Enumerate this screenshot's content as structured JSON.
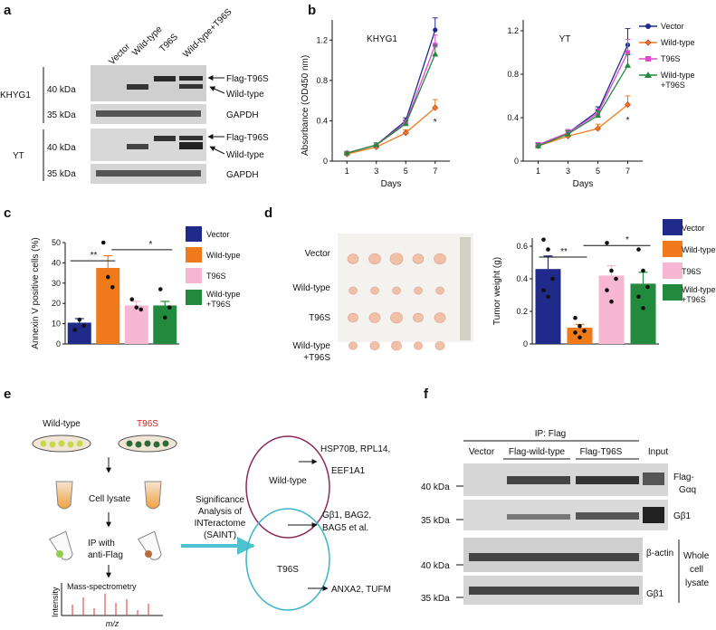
{
  "panels": {
    "a": {
      "label": "a",
      "lanes": [
        "Vector",
        "Wild-type",
        "T96S",
        "Wild-type+T96S"
      ],
      "cell_lines": [
        "KHYG1",
        "YT"
      ],
      "kda_40": "40 kDa",
      "kda_35": "35 kDa",
      "band_flag": "Flag-T96S",
      "band_wt": "Wild-type",
      "band_gapdh": "GAPDH"
    },
    "b": {
      "label": "b",
      "xlabel": "Days",
      "ylabel": "Absorbance (OD450 nm)",
      "legend": [
        "Vector",
        "Wild-type",
        "T96S",
        "Wild-type",
        "+T96S"
      ],
      "star": "*"
    },
    "c": {
      "label": "c",
      "legend": [
        "Vector",
        "Wild-type",
        "T96S",
        "Wild-type",
        "+T96S"
      ],
      "sig1": "**",
      "sig2": "*"
    },
    "d": {
      "label": "d",
      "photo_rows": [
        "Vector",
        "Wild-type",
        "T96S",
        "Wild-type",
        "+T96S"
      ],
      "legend": [
        "Vector",
        "Wild-type",
        "T96S",
        "Wild-type",
        "+T96S"
      ],
      "sig1": "**",
      "sig2": "*"
    },
    "e": {
      "label": "e",
      "wildtype": "Wild-type",
      "t96s": "T96S",
      "cell_lysate": "Cell lysate",
      "ip_line1": "IP with",
      "ip_line2": "anti-Flag",
      "mass_spec": "Mass-spectrometry",
      "intensity": "Intensity",
      "mz": "m/z",
      "saint_lines": [
        "Significance",
        "Analysis of",
        "INTeractome",
        "(SAINT)"
      ],
      "venn_wt": "Wild-type",
      "venn_t96s": "T96S",
      "hits_wt_line1": "HSP70B, RPL14,",
      "hits_wt_line2": "EEF1A1",
      "hits_shared_line1": "Gβ1, BAG2,",
      "hits_shared_line2": "BAG5 et al.",
      "hits_t96s": "ANXA2, TUFM"
    },
    "f": {
      "label": "f",
      "ip_title": "IP: Flag",
      "lanes": [
        "Vector",
        "Flag-wild-type",
        "Flag-T96S",
        "Input"
      ],
      "kda_40": "40 kDa",
      "kda_35": "35 kDa",
      "band_flag_l1": "Flag-",
      "band_flag_l2": "Gαq",
      "band_gb1": "Gβ1",
      "band_actin": "β-actin",
      "whole_lines": [
        "Whole",
        "cell",
        "lysate"
      ]
    }
  },
  "colors": {
    "vector": "#1f2a8a",
    "wildtype": "#f07a1a",
    "t96s": "#f7b6d2",
    "wt_t96s": "#218a3c",
    "t96s_text": "#d62020",
    "arrow_cyan": "#4ec3cf",
    "venn_wt": "#8a2b5a",
    "venn_t96s": "#3bb5c8"
  },
  "chart_data": [
    {
      "type": "line",
      "title": "KHYG1",
      "xlabel": "Days",
      "ylabel": "Absorbance (OD450 nm)",
      "x": [
        1,
        3,
        5,
        7
      ],
      "xlim": [
        0,
        8
      ],
      "ylim": [
        0,
        1.4
      ],
      "yticks": [
        0,
        0.4,
        0.8,
        1.2
      ],
      "series": [
        {
          "name": "Vector",
          "values": [
            0.08,
            0.16,
            0.4,
            1.3
          ],
          "err": [
            0.01,
            0.02,
            0.03,
            0.12
          ]
        },
        {
          "name": "Wild-type",
          "values": [
            0.07,
            0.14,
            0.28,
            0.53
          ],
          "err": [
            0.01,
            0.02,
            0.03,
            0.08
          ]
        },
        {
          "name": "T96S",
          "values": [
            0.08,
            0.16,
            0.38,
            1.15
          ],
          "err": [
            0.01,
            0.02,
            0.03,
            0.1
          ]
        },
        {
          "name": "Wild-type +T96S",
          "values": [
            0.08,
            0.16,
            0.37,
            1.06
          ],
          "err": [
            0.01,
            0.02,
            0.03,
            0.09
          ]
        }
      ],
      "legend_position": "right"
    },
    {
      "type": "line",
      "title": "YT",
      "xlabel": "Days",
      "x": [
        1,
        3,
        5,
        7
      ],
      "xlim": [
        0,
        8
      ],
      "ylim": [
        0,
        1.3
      ],
      "yticks": [
        0,
        0.4,
        0.8,
        1.2
      ],
      "series": [
        {
          "name": "Vector",
          "values": [
            0.15,
            0.26,
            0.46,
            1.07
          ],
          "err": [
            0.02,
            0.03,
            0.04,
            0.15
          ]
        },
        {
          "name": "Wild-type",
          "values": [
            0.14,
            0.23,
            0.3,
            0.52
          ],
          "err": [
            0.02,
            0.03,
            0.04,
            0.08
          ]
        },
        {
          "name": "T96S",
          "values": [
            0.15,
            0.26,
            0.44,
            1.0
          ],
          "err": [
            0.02,
            0.03,
            0.04,
            0.12
          ]
        },
        {
          "name": "Wild-type +T96S",
          "values": [
            0.14,
            0.25,
            0.42,
            0.88
          ],
          "err": [
            0.02,
            0.03,
            0.04,
            0.1
          ]
        }
      ]
    },
    {
      "type": "bar",
      "ylabel": "Annexin V positive cells (%)",
      "categories": [
        "Vector",
        "Wild-type",
        "T96S",
        "Wild-type +T96S"
      ],
      "values": [
        10.5,
        37.5,
        19,
        19
      ],
      "err": [
        2,
        6,
        2,
        2
      ],
      "points": [
        [
          7,
          12,
          9
        ],
        [
          50,
          33,
          28
        ],
        [
          22,
          18,
          17
        ],
        [
          27,
          13,
          18
        ]
      ],
      "ylim": [
        0,
        50
      ],
      "yticks": [
        0,
        10,
        20,
        30,
        40,
        50
      ]
    },
    {
      "type": "bar",
      "ylabel": "Tumor weight (g)",
      "categories": [
        "Vector",
        "Wild-type",
        "T96S",
        "Wild-type +T96S"
      ],
      "values": [
        0.46,
        0.1,
        0.42,
        0.37
      ],
      "err": [
        0.08,
        0.02,
        0.06,
        0.07
      ],
      "points": [
        [
          0.64,
          0.58,
          0.4,
          0.33,
          0.29
        ],
        [
          0.16,
          0.11,
          0.08,
          0.07,
          0.04
        ],
        [
          0.62,
          0.45,
          0.4,
          0.33,
          0.26
        ],
        [
          0.58,
          0.45,
          0.35,
          0.29,
          0.22
        ]
      ],
      "ylim": [
        0,
        0.65
      ],
      "yticks": [
        0,
        0.2,
        0.4,
        0.6
      ]
    }
  ]
}
